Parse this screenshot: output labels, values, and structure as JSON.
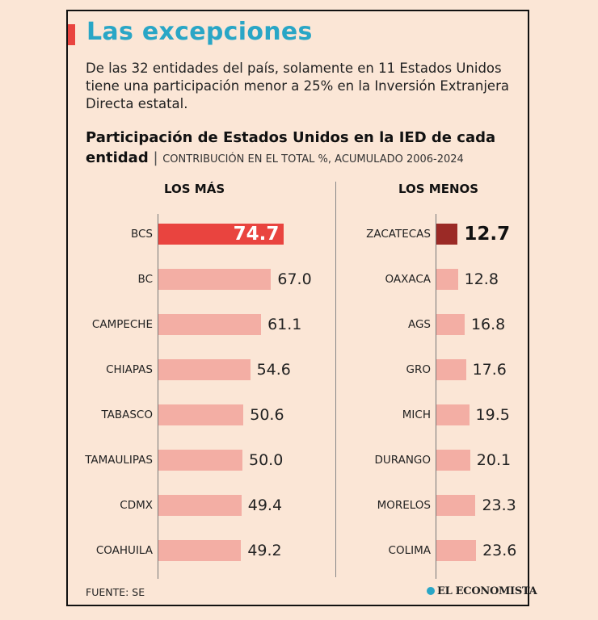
{
  "header": {
    "title": "Las excepciones",
    "intro": "De las 32 entidades del país, solamente en 11 Estados Unidos tiene una participación menor a 25% en la Inversión Extranjera Directa estatal.",
    "subtitle": "Participación de Estados Unidos en la IED de cada entidad",
    "subtitle_sep": " | ",
    "subtitle_unit": "CONTRIBUCIÓN EN EL TOTAL %, ACUMULADO 2006-2024"
  },
  "footer": {
    "source": "FUENTE: SE",
    "logo_text": "EL ECONOMISTA"
  },
  "colors": {
    "bar": "#f3aea4",
    "highlight_left": "#e9443f",
    "highlight_right": "#9b2a26",
    "title": "#29a6c6"
  },
  "chart_data": [
    {
      "type": "bar",
      "orientation": "horizontal",
      "title": "LOS MÁS",
      "unit": "%",
      "categories": [
        "BCS",
        "BC",
        "CAMPECHE",
        "CHIAPAS",
        "TABASCO",
        "TAMAULIPAS",
        "CDMX",
        "COAHUILA"
      ],
      "values": [
        74.7,
        67.0,
        61.1,
        54.6,
        50.6,
        50.0,
        49.4,
        49.2
      ],
      "labels": [
        "74.7",
        "67.0",
        "61.1",
        "54.6",
        "50.6",
        "50.0",
        "49.4",
        "49.2"
      ],
      "highlight_index": 0,
      "xlim": [
        0,
        75
      ]
    },
    {
      "type": "bar",
      "orientation": "horizontal",
      "title": "LOS MENOS",
      "unit": "%",
      "categories": [
        "ZACATECAS",
        "OAXACA",
        "AGS",
        "GRO",
        "MICH",
        "DURANGO",
        "MORELOS",
        "COLIMA"
      ],
      "values": [
        12.7,
        12.8,
        16.8,
        17.6,
        19.5,
        20.1,
        23.3,
        23.6
      ],
      "labels": [
        "12.7",
        "12.8",
        "16.8",
        "17.6",
        "19.5",
        "20.1",
        "23.3",
        "23.6"
      ],
      "highlight_index": 0,
      "xlim": [
        0,
        75
      ]
    }
  ]
}
